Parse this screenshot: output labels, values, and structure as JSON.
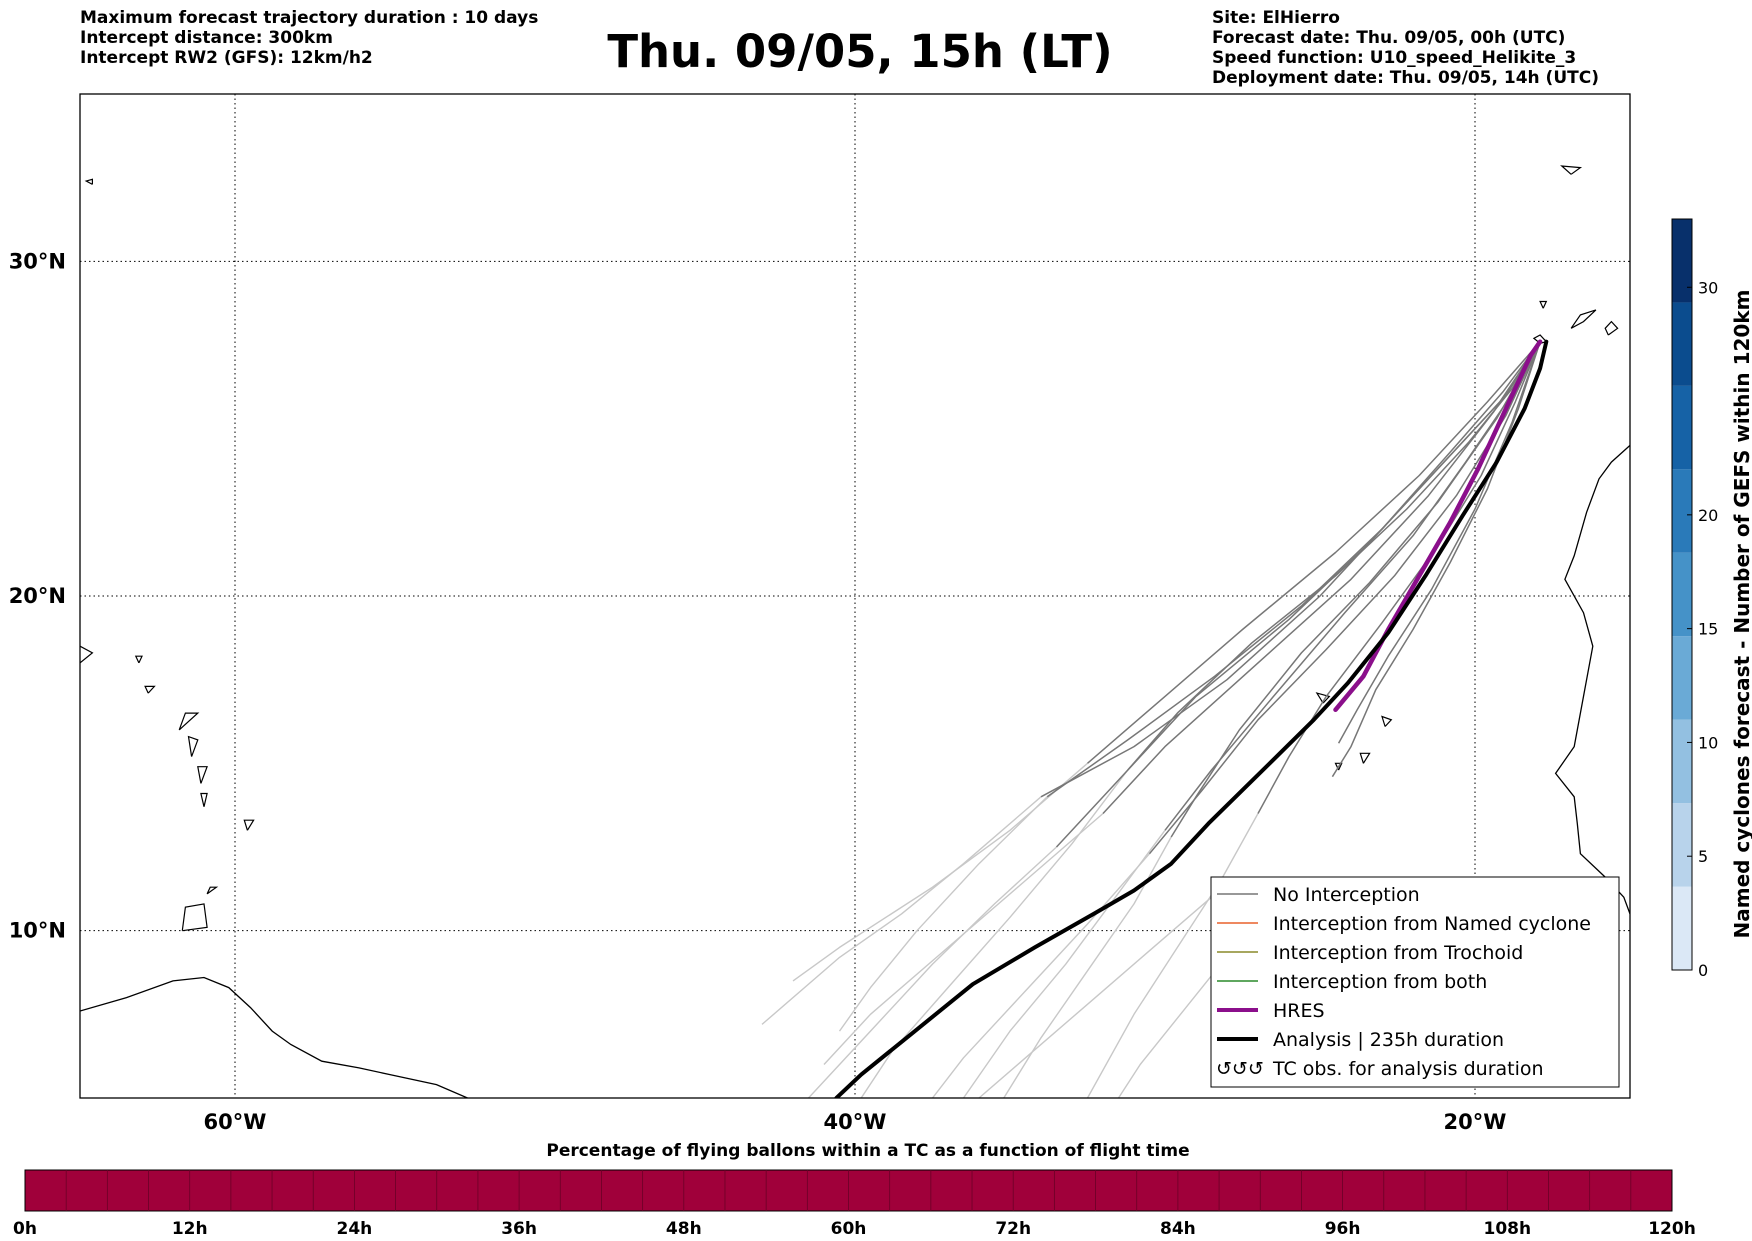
{
  "header": {
    "left_lines": [
      "Maximum forecast trajectory duration : 10 days",
      "Intercept distance: 300km",
      "Intercept RW2 (GFS):  12km/h2"
    ],
    "title": "Thu. 09/05, 15h (LT)",
    "right_lines": [
      "Site: ElHierro",
      "Forecast date: Thu. 09/05, 00h (UTC)",
      "Speed function: U10_speed_Helikite_3",
      "Deployment date: Thu. 09/05, 14h (UTC)"
    ]
  },
  "map": {
    "projection": "cylindrical",
    "lon_range": [
      -65,
      -15
    ],
    "lat_range": [
      5,
      35
    ],
    "lat_ticks": [
      {
        "lat": 10,
        "label": "10°N"
      },
      {
        "lat": 20,
        "label": "20°N"
      },
      {
        "lat": 30,
        "label": "30°N"
      }
    ],
    "lon_ticks": [
      {
        "lon": -60,
        "label": "60°W"
      },
      {
        "lon": -40,
        "label": "40°W"
      },
      {
        "lon": -20,
        "label": "20°W"
      }
    ],
    "grid": "dotted",
    "site": {
      "name": "ElHierro",
      "lon": -17.7,
      "lat": 27.6
    },
    "colors": {
      "no_interception": "#777777",
      "faded_trajectory": "#c8c8c8",
      "named_cyclone": "#e8612c",
      "trochoid": "#8a8a2a",
      "both": "#2a8a2a",
      "hres": "#8b0f8b",
      "analysis": "#000000",
      "coast": "#000000"
    }
  },
  "legend": {
    "items": [
      {
        "label": "No Interception",
        "style": "no-interception"
      },
      {
        "label": "Interception from Named cyclone",
        "style": "named-cyclone"
      },
      {
        "label": "Interception from Trochoid",
        "style": "trochoid"
      },
      {
        "label": "Interception from both",
        "style": "both"
      },
      {
        "label": "HRES",
        "style": "hres"
      },
      {
        "label": "Analysis | 235h duration",
        "style": "analysis"
      },
      {
        "label": "TC obs. for analysis duration",
        "style": "tc-obs"
      }
    ],
    "placement": "lower-right"
  },
  "colorbar_right": {
    "label": "Named cyclones forecast - Number of GEFS within 120km",
    "min": 0,
    "max": 33,
    "ticks": [
      0,
      5,
      10,
      15,
      20,
      30
    ],
    "colors": [
      "#dbe8f6",
      "#b8d3eb",
      "#93c0e1",
      "#6aaad6",
      "#4592c8",
      "#2a7ab9",
      "#1662a6",
      "#0b4c8e",
      "#08306b"
    ]
  },
  "colorbar_bottom": {
    "title": "Percentage of flying ballons within a TC as a function of flight time",
    "ticks": [
      "0h",
      "12h",
      "24h",
      "36h",
      "48h",
      "60h",
      "72h",
      "84h",
      "96h",
      "108h",
      "120h"
    ],
    "fill_color": "#a0003a"
  },
  "trajectories": {
    "origin": [
      -17.9,
      27.6
    ],
    "hres": [
      [
        -17.9,
        27.6
      ],
      [
        -18.2,
        27.2
      ],
      [
        -18.6,
        26.4
      ],
      [
        -19.2,
        25.2
      ],
      [
        -19.9,
        23.8
      ],
      [
        -20.8,
        22.2
      ],
      [
        -21.8,
        20.6
      ],
      [
        -22.8,
        19.0
      ],
      [
        -23.6,
        17.6
      ],
      [
        -24.5,
        16.6
      ]
    ],
    "analysis": [
      [
        -17.7,
        27.6
      ],
      [
        -17.9,
        26.8
      ],
      [
        -18.4,
        25.6
      ],
      [
        -19.3,
        24.0
      ],
      [
        -20.4,
        22.4
      ],
      [
        -21.6,
        20.6
      ],
      [
        -22.8,
        18.9
      ],
      [
        -24.1,
        17.4
      ],
      [
        -25.2,
        16.3
      ],
      [
        -26.4,
        15.2
      ],
      [
        -27.5,
        14.2
      ],
      [
        -28.6,
        13.2
      ],
      [
        -29.8,
        12.0
      ],
      [
        -31.0,
        11.2
      ],
      [
        -32.3,
        10.5
      ],
      [
        -34.2,
        9.5
      ],
      [
        -36.2,
        8.4
      ],
      [
        -38.2,
        6.9
      ],
      [
        -39.8,
        5.7
      ],
      [
        -40.6,
        5.0
      ]
    ],
    "no_interception": [
      [
        [
          -17.9,
          27.6
        ],
        [
          -19.0,
          26.0
        ],
        [
          -20.5,
          24.5
        ],
        [
          -22.5,
          22.5
        ],
        [
          -25.0,
          20.0
        ],
        [
          -28.0,
          17.5
        ],
        [
          -31.0,
          15.5
        ],
        [
          -34.0,
          14.0
        ]
      ],
      [
        [
          -17.9,
          27.6
        ],
        [
          -19.2,
          25.8
        ],
        [
          -21.0,
          24.0
        ],
        [
          -23.5,
          21.5
        ],
        [
          -26.0,
          19.3
        ],
        [
          -29.0,
          17.0
        ],
        [
          -31.5,
          14.5
        ],
        [
          -33.5,
          12.5
        ]
      ],
      [
        [
          -17.9,
          27.6
        ],
        [
          -18.9,
          25.9
        ],
        [
          -20.3,
          24.0
        ],
        [
          -22.0,
          21.8
        ],
        [
          -24.2,
          19.5
        ],
        [
          -26.5,
          17.0
        ],
        [
          -28.5,
          14.8
        ],
        [
          -30.0,
          13.0
        ]
      ],
      [
        [
          -17.9,
          27.6
        ],
        [
          -18.7,
          25.8
        ],
        [
          -19.8,
          23.6
        ],
        [
          -21.2,
          21.5
        ],
        [
          -23.0,
          19.2
        ],
        [
          -24.8,
          17.0
        ],
        [
          -26.0,
          15.2
        ],
        [
          -27.0,
          13.5
        ]
      ],
      [
        [
          -17.9,
          27.6
        ],
        [
          -19.4,
          25.5
        ],
        [
          -21.5,
          23.0
        ],
        [
          -24.0,
          20.5
        ],
        [
          -27.0,
          18.0
        ],
        [
          -30.0,
          15.5
        ],
        [
          -32.0,
          13.5
        ]
      ],
      [
        [
          -17.9,
          27.6
        ],
        [
          -18.6,
          25.6
        ],
        [
          -19.6,
          23.2
        ],
        [
          -20.8,
          21.0
        ],
        [
          -22.0,
          19.0
        ],
        [
          -23.2,
          17.2
        ],
        [
          -24.0,
          15.5
        ],
        [
          -24.6,
          14.6
        ]
      ],
      [
        [
          -17.9,
          27.6
        ],
        [
          -19.0,
          25.4
        ],
        [
          -20.6,
          23.0
        ],
        [
          -22.6,
          20.6
        ],
        [
          -24.8,
          18.4
        ],
        [
          -27.0,
          16.3
        ],
        [
          -28.8,
          14.2
        ],
        [
          -30.5,
          12.3
        ]
      ],
      [
        [
          -17.9,
          27.6
        ],
        [
          -19.6,
          25.8
        ],
        [
          -21.8,
          23.6
        ],
        [
          -24.5,
          21.3
        ],
        [
          -27.5,
          19.0
        ],
        [
          -30.0,
          17.0
        ],
        [
          -32.5,
          15.0
        ]
      ],
      [
        [
          -17.9,
          27.6
        ],
        [
          -18.8,
          25.2
        ],
        [
          -20.0,
          22.6
        ],
        [
          -21.4,
          20.2
        ],
        [
          -22.8,
          18.2
        ],
        [
          -23.8,
          16.6
        ],
        [
          -24.4,
          15.6
        ]
      ],
      [
        [
          -17.9,
          27.6
        ],
        [
          -19.1,
          26.1
        ],
        [
          -20.8,
          24.3
        ],
        [
          -23.0,
          22.0
        ],
        [
          -25.6,
          19.7
        ],
        [
          -28.4,
          17.6
        ],
        [
          -31.2,
          15.7
        ],
        [
          -33.8,
          14.0
        ]
      ],
      [
        [
          -17.9,
          27.6
        ],
        [
          -18.8,
          26.2
        ],
        [
          -20.2,
          24.6
        ],
        [
          -22.2,
          22.6
        ],
        [
          -24.5,
          20.6
        ],
        [
          -27.2,
          18.6
        ],
        [
          -29.6,
          16.5
        ],
        [
          -31.2,
          14.8
        ]
      ],
      [
        [
          -17.9,
          27.6
        ],
        [
          -19.3,
          25.3
        ],
        [
          -21.2,
          22.8
        ],
        [
          -23.4,
          20.4
        ],
        [
          -25.6,
          18.3
        ],
        [
          -27.6,
          16.0
        ],
        [
          -29.0,
          14.0
        ],
        [
          -29.8,
          12.8
        ]
      ]
    ],
    "faded": [
      [
        [
          -34.0,
          14.0
        ],
        [
          -36.5,
          12.0
        ],
        [
          -38.5,
          10.5
        ],
        [
          -40.5,
          9.2
        ],
        [
          -43.0,
          7.2
        ]
      ],
      [
        [
          -33.5,
          12.5
        ],
        [
          -35.5,
          10.8
        ],
        [
          -37.5,
          9.0
        ],
        [
          -39.5,
          7.0
        ],
        [
          -41.5,
          5.0
        ]
      ],
      [
        [
          -30.0,
          13.0
        ],
        [
          -31.6,
          11.0
        ],
        [
          -33.2,
          9.0
        ],
        [
          -35.0,
          7.0
        ],
        [
          -36.5,
          5.0
        ]
      ],
      [
        [
          -27.0,
          13.5
        ],
        [
          -28.2,
          11.5
        ],
        [
          -29.6,
          9.5
        ],
        [
          -31.0,
          7.5
        ],
        [
          -32.5,
          5.0
        ]
      ],
      [
        [
          -32.0,
          13.5
        ],
        [
          -34.5,
          11.5
        ],
        [
          -37.0,
          9.5
        ],
        [
          -39.5,
          7.5
        ],
        [
          -41.0,
          6.0
        ]
      ],
      [
        [
          -30.5,
          12.3
        ],
        [
          -32.5,
          10.2
        ],
        [
          -34.5,
          8.2
        ],
        [
          -36.5,
          6.2
        ],
        [
          -37.5,
          5.0
        ]
      ],
      [
        [
          -32.5,
          15.0
        ],
        [
          -35.0,
          13.0
        ],
        [
          -37.5,
          11.3
        ],
        [
          -40.5,
          9.5
        ],
        [
          -42.0,
          8.5
        ]
      ],
      [
        [
          -33.8,
          14.0
        ],
        [
          -36.0,
          12.0
        ],
        [
          -38.0,
          10.0
        ],
        [
          -39.5,
          8.3
        ],
        [
          -40.5,
          7.0
        ]
      ],
      [
        [
          -31.2,
          14.8
        ],
        [
          -33.0,
          12.6
        ],
        [
          -35.0,
          10.4
        ],
        [
          -37.0,
          8.3
        ],
        [
          -38.8,
          6.4
        ],
        [
          -39.8,
          5.0
        ]
      ],
      [
        [
          -29.8,
          12.8
        ],
        [
          -31.0,
          10.8
        ],
        [
          -32.5,
          8.8
        ],
        [
          -34.0,
          6.8
        ],
        [
          -35.2,
          5.0
        ]
      ],
      [
        [
          -27.0,
          10.5
        ],
        [
          -28.2,
          9.0
        ],
        [
          -29.5,
          7.5
        ],
        [
          -30.8,
          6.0
        ],
        [
          -31.5,
          5.0
        ]
      ],
      [
        [
          -28.5,
          11.0
        ],
        [
          -30.5,
          9.4
        ],
        [
          -32.5,
          7.8
        ],
        [
          -34.5,
          6.2
        ],
        [
          -36.0,
          5.0
        ]
      ]
    ]
  },
  "coast": {
    "west_africa": [
      [
        -15.0,
        24.5
      ],
      [
        -15.6,
        24.0
      ],
      [
        -16.0,
        23.5
      ],
      [
        -16.4,
        22.5
      ],
      [
        -16.8,
        21.2
      ],
      [
        -17.1,
        20.5
      ],
      [
        -16.5,
        19.5
      ],
      [
        -16.2,
        18.5
      ],
      [
        -16.5,
        17.0
      ],
      [
        -16.8,
        15.5
      ],
      [
        -17.4,
        14.7
      ],
      [
        -16.8,
        14.0
      ],
      [
        -16.7,
        13.2
      ],
      [
        -16.6,
        12.3
      ],
      [
        -15.8,
        11.6
      ],
      [
        -15.2,
        11.0
      ],
      [
        -15.0,
        10.5
      ]
    ],
    "south_america": [
      [
        -65,
        7.6
      ],
      [
        -63.5,
        8.0
      ],
      [
        -62.0,
        8.5
      ],
      [
        -61.0,
        8.6
      ],
      [
        -60.2,
        8.3
      ],
      [
        -59.5,
        7.7
      ],
      [
        -58.8,
        7.0
      ],
      [
        -58.2,
        6.6
      ],
      [
        -57.2,
        6.1
      ],
      [
        -56.0,
        5.9
      ],
      [
        -55.0,
        5.7
      ],
      [
        -53.5,
        5.4
      ],
      [
        -52.5,
        5.0
      ]
    ],
    "islands": [
      [
        [
          -17.7,
          27.6
        ],
        [
          -17.9,
          27.8
        ],
        [
          -18.1,
          27.7
        ],
        [
          -17.9,
          27.55
        ],
        [
          -17.7,
          27.6
        ]
      ],
      [
        [
          -16.9,
          28.0
        ],
        [
          -16.6,
          28.4
        ],
        [
          -16.1,
          28.55
        ],
        [
          -16.5,
          28.2
        ],
        [
          -16.9,
          28.0
        ]
      ],
      [
        [
          -15.7,
          27.8
        ],
        [
          -15.4,
          28.0
        ],
        [
          -15.6,
          28.2
        ],
        [
          -15.8,
          28.0
        ],
        [
          -15.7,
          27.8
        ]
      ],
      [
        [
          -14.5,
          28.1
        ],
        [
          -13.9,
          28.4
        ],
        [
          -14.2,
          28.6
        ],
        [
          -14.6,
          28.3
        ],
        [
          -14.5,
          28.1
        ]
      ],
      [
        [
          -17.8,
          28.6
        ],
        [
          -17.7,
          28.8
        ],
        [
          -17.9,
          28.8
        ],
        [
          -17.8,
          28.6
        ]
      ],
      [
        [
          -16.9,
          32.6
        ],
        [
          -16.6,
          32.8
        ],
        [
          -17.2,
          32.85
        ],
        [
          -16.9,
          32.6
        ]
      ],
      [
        [
          -24.9,
          16.8
        ],
        [
          -24.7,
          17.0
        ],
        [
          -25.1,
          17.1
        ],
        [
          -24.9,
          16.8
        ]
      ],
      [
        [
          -22.9,
          16.1
        ],
        [
          -22.7,
          16.3
        ],
        [
          -23.0,
          16.4
        ],
        [
          -22.9,
          16.1
        ]
      ],
      [
        [
          -23.6,
          15.0
        ],
        [
          -23.4,
          15.3
        ],
        [
          -23.7,
          15.3
        ],
        [
          -23.6,
          15.0
        ]
      ],
      [
        [
          -24.4,
          14.8
        ],
        [
          -24.3,
          15.0
        ],
        [
          -24.5,
          15.0
        ],
        [
          -24.4,
          14.8
        ]
      ],
      [
        [
          -61.4,
          15.2
        ],
        [
          -61.2,
          15.7
        ],
        [
          -61.5,
          15.8
        ],
        [
          -61.4,
          15.2
        ]
      ],
      [
        [
          -61.1,
          14.4
        ],
        [
          -60.9,
          14.9
        ],
        [
          -61.2,
          14.9
        ],
        [
          -61.1,
          14.4
        ]
      ],
      [
        [
          -61.0,
          13.7
        ],
        [
          -60.9,
          14.1
        ],
        [
          -61.1,
          14.1
        ],
        [
          -61.0,
          13.7
        ]
      ],
      [
        [
          -61.8,
          16.0
        ],
        [
          -61.2,
          16.5
        ],
        [
          -61.6,
          16.5
        ],
        [
          -61.8,
          16.0
        ]
      ],
      [
        [
          -59.6,
          13.0
        ],
        [
          -59.4,
          13.3
        ],
        [
          -59.7,
          13.3
        ],
        [
          -59.6,
          13.0
        ]
      ],
      [
        [
          -61.7,
          10.0
        ],
        [
          -60.9,
          10.1
        ],
        [
          -61.0,
          10.8
        ],
        [
          -61.6,
          10.7
        ],
        [
          -61.7,
          10.0
        ]
      ],
      [
        [
          -65,
          18.0
        ],
        [
          -64.6,
          18.3
        ],
        [
          -65,
          18.5
        ]
      ],
      [
        [
          -62.8,
          17.1
        ],
        [
          -62.6,
          17.3
        ],
        [
          -62.9,
          17.3
        ],
        [
          -62.8,
          17.1
        ]
      ],
      [
        [
          -63.1,
          18.0
        ],
        [
          -63.0,
          18.2
        ],
        [
          -63.2,
          18.2
        ],
        [
          -63.1,
          18.0
        ]
      ],
      [
        [
          -64.6,
          32.3
        ],
        [
          -64.8,
          32.4
        ],
        [
          -64.6,
          32.45
        ],
        [
          -64.6,
          32.3
        ]
      ],
      [
        [
          -60.9,
          11.1
        ],
        [
          -60.6,
          11.3
        ],
        [
          -60.8,
          11.3
        ],
        [
          -60.9,
          11.1
        ]
      ]
    ]
  }
}
